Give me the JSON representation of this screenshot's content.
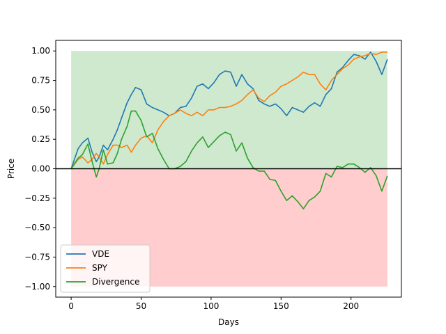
{
  "chart_data": {
    "type": "line",
    "title": "",
    "xlabel": "Days",
    "ylabel": "Price",
    "xlim": [
      -11,
      236
    ],
    "ylim": [
      -1.09,
      1.09
    ],
    "x_ticks": [
      0,
      50,
      100,
      150,
      200
    ],
    "x_tick_labels": [
      "0",
      "50",
      "100",
      "150",
      "200"
    ],
    "y_ticks": [
      -1.0,
      -0.75,
      -0.5,
      -0.25,
      0.0,
      0.25,
      0.5,
      0.75,
      1.0
    ],
    "y_tick_labels": [
      "−1.00",
      "−0.75",
      "−0.50",
      "−0.25",
      "0.00",
      "0.25",
      "0.50",
      "0.75",
      "1.00"
    ],
    "grid": false,
    "legend_position": "bottom-left",
    "bands": [
      {
        "x0": 0,
        "x1": 226,
        "y0": 0,
        "y1": 1,
        "color": "#2ca02c",
        "opacity": 0.23
      },
      {
        "x0": 0,
        "x1": 226,
        "y0": -1,
        "y1": 0,
        "color": "#ff3030",
        "opacity": 0.24
      }
    ],
    "hline": {
      "y": 0,
      "color": "#000000"
    },
    "x": [
      0,
      5,
      8,
      12,
      15,
      18,
      20,
      23,
      26,
      30,
      33,
      36,
      40,
      43,
      46,
      50,
      54,
      58,
      62,
      66,
      70,
      74,
      78,
      82,
      86,
      90,
      94,
      98,
      102,
      106,
      110,
      114,
      118,
      122,
      126,
      130,
      134,
      138,
      142,
      146,
      150,
      154,
      158,
      162,
      166,
      170,
      174,
      178,
      182,
      186,
      190,
      194,
      198,
      202,
      206,
      210,
      214,
      218,
      222,
      226
    ],
    "series": [
      {
        "name": "VDE",
        "color": "#1f77b4",
        "values": [
          0.0,
          0.17,
          0.22,
          0.26,
          0.14,
          0.06,
          0.1,
          0.2,
          0.16,
          0.25,
          0.33,
          0.43,
          0.56,
          0.63,
          0.69,
          0.67,
          0.55,
          0.52,
          0.5,
          0.48,
          0.45,
          0.47,
          0.52,
          0.53,
          0.6,
          0.7,
          0.72,
          0.68,
          0.73,
          0.8,
          0.83,
          0.82,
          0.7,
          0.8,
          0.72,
          0.68,
          0.58,
          0.55,
          0.53,
          0.55,
          0.51,
          0.45,
          0.52,
          0.5,
          0.48,
          0.53,
          0.56,
          0.53,
          0.63,
          0.68,
          0.82,
          0.86,
          0.92,
          0.97,
          0.96,
          0.93,
          0.99,
          0.91,
          0.8,
          0.93
        ]
      },
      {
        "name": "SPY",
        "color": "#ff7f0e",
        "values": [
          0.0,
          0.08,
          0.1,
          0.05,
          0.08,
          0.13,
          0.1,
          0.04,
          0.12,
          0.2,
          0.2,
          0.18,
          0.2,
          0.14,
          0.2,
          0.26,
          0.28,
          0.22,
          0.33,
          0.4,
          0.45,
          0.47,
          0.5,
          0.47,
          0.45,
          0.48,
          0.45,
          0.5,
          0.5,
          0.52,
          0.52,
          0.53,
          0.55,
          0.58,
          0.63,
          0.67,
          0.6,
          0.57,
          0.62,
          0.65,
          0.7,
          0.72,
          0.75,
          0.78,
          0.82,
          0.8,
          0.8,
          0.72,
          0.67,
          0.75,
          0.8,
          0.85,
          0.88,
          0.93,
          0.95,
          0.96,
          0.98,
          0.97,
          0.99,
          0.99
        ]
      },
      {
        "name": "Divergence",
        "color": "#2ca02c",
        "values": [
          0.0,
          0.09,
          0.12,
          0.21,
          0.06,
          -0.07,
          0.0,
          0.16,
          0.04,
          0.05,
          0.13,
          0.25,
          0.36,
          0.49,
          0.49,
          0.41,
          0.27,
          0.3,
          0.17,
          0.08,
          0.0,
          0.0,
          0.02,
          0.06,
          0.15,
          0.22,
          0.27,
          0.18,
          0.23,
          0.28,
          0.31,
          0.29,
          0.15,
          0.22,
          0.09,
          0.01,
          -0.02,
          -0.02,
          -0.09,
          -0.1,
          -0.19,
          -0.27,
          -0.23,
          -0.28,
          -0.34,
          -0.27,
          -0.24,
          -0.19,
          -0.04,
          -0.07,
          0.02,
          0.01,
          0.04,
          0.04,
          0.01,
          -0.03,
          0.01,
          -0.06,
          -0.19,
          -0.06
        ]
      }
    ]
  }
}
